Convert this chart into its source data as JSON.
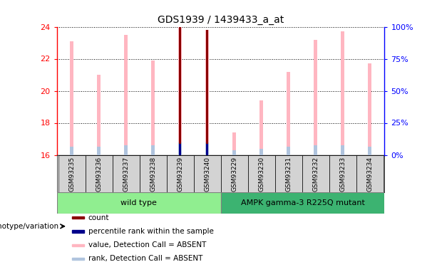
{
  "title": "GDS1939 / 1439433_a_at",
  "samples": [
    "GSM93235",
    "GSM93236",
    "GSM93237",
    "GSM93238",
    "GSM93239",
    "GSM93240",
    "GSM93229",
    "GSM93230",
    "GSM93231",
    "GSM93232",
    "GSM93233",
    "GSM93234"
  ],
  "group1": "wild type",
  "group2": "AMPK gamma-3 R225Q mutant",
  "group1_indices": [
    0,
    1,
    2,
    3,
    4,
    5
  ],
  "group2_indices": [
    6,
    7,
    8,
    9,
    10,
    11
  ],
  "ylim_left": [
    16,
    24
  ],
  "ylim_right": [
    0,
    100
  ],
  "yticks_left": [
    16,
    18,
    20,
    22,
    24
  ],
  "yticks_right": [
    0,
    25,
    50,
    75,
    100
  ],
  "yticklabels_right": [
    "0%",
    "25%",
    "50%",
    "75%",
    "100%"
  ],
  "value_bars": [
    23.1,
    21.0,
    23.5,
    21.9,
    24.0,
    23.8,
    17.4,
    19.4,
    21.2,
    23.2,
    23.7,
    21.7
  ],
  "rank_bars": [
    16.5,
    16.5,
    16.6,
    16.6,
    16.8,
    16.8,
    16.3,
    16.4,
    16.5,
    16.6,
    16.6,
    16.5
  ],
  "count_bars": [
    null,
    null,
    null,
    null,
    24.0,
    23.8,
    null,
    null,
    null,
    null,
    null,
    null
  ],
  "count_rank_bars": [
    null,
    null,
    null,
    null,
    16.7,
    16.7,
    null,
    null,
    null,
    null,
    null,
    null
  ],
  "value_bar_color": "#FFB6C1",
  "rank_bar_color": "#B0C4DE",
  "count_bar_color": "#8B0000",
  "count_rank_bar_color": "#00008B",
  "value_bar_width": 0.12,
  "rank_bar_width": 0.12,
  "count_bar_width": 0.08,
  "group1_color": "#90EE90",
  "group2_color": "#3CB371",
  "sample_cell_color": "#D3D3D3",
  "legend_items": [
    {
      "label": "count",
      "color": "#8B0000"
    },
    {
      "label": "percentile rank within the sample",
      "color": "#00008B"
    },
    {
      "label": "value, Detection Call = ABSENT",
      "color": "#FFB6C1"
    },
    {
      "label": "rank, Detection Call = ABSENT",
      "color": "#B0C4DE"
    }
  ]
}
